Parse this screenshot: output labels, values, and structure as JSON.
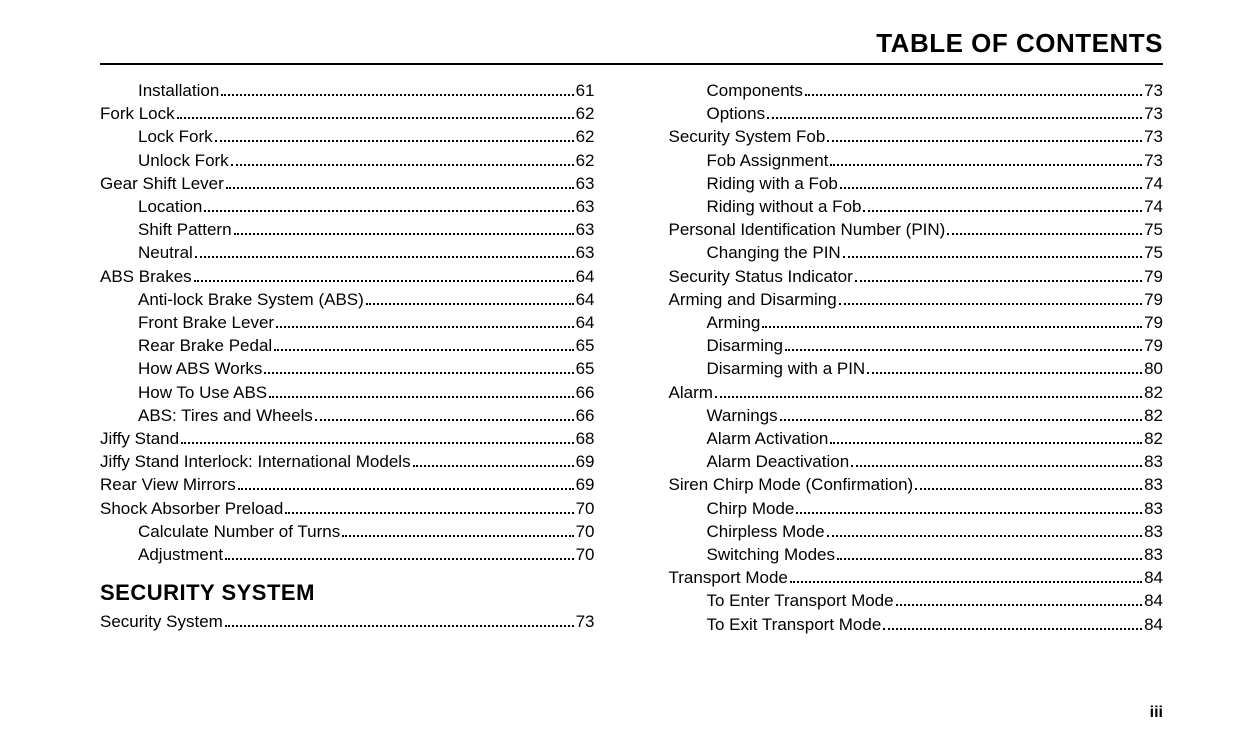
{
  "header": {
    "title": "TABLE OF CONTENTS"
  },
  "pageNumber": "iii",
  "columns": [
    {
      "items": [
        {
          "type": "entry",
          "level": 1,
          "title": "Installation",
          "page": "61"
        },
        {
          "type": "entry",
          "level": 0,
          "title": "Fork Lock",
          "page": "62"
        },
        {
          "type": "entry",
          "level": 1,
          "title": "Lock Fork",
          "page": "62"
        },
        {
          "type": "entry",
          "level": 1,
          "title": "Unlock Fork",
          "page": "62"
        },
        {
          "type": "entry",
          "level": 0,
          "title": "Gear Shift Lever",
          "page": "63"
        },
        {
          "type": "entry",
          "level": 1,
          "title": "Location",
          "page": "63"
        },
        {
          "type": "entry",
          "level": 1,
          "title": "Shift Pattern",
          "page": "63"
        },
        {
          "type": "entry",
          "level": 1,
          "title": "Neutral",
          "page": "63"
        },
        {
          "type": "entry",
          "level": 0,
          "title": "ABS Brakes",
          "page": "64"
        },
        {
          "type": "entry",
          "level": 1,
          "title": "Anti-lock Brake System (ABS)",
          "page": "64"
        },
        {
          "type": "entry",
          "level": 1,
          "title": "Front Brake Lever",
          "page": "64"
        },
        {
          "type": "entry",
          "level": 1,
          "title": "Rear Brake Pedal",
          "page": "65"
        },
        {
          "type": "entry",
          "level": 1,
          "title": "How ABS Works",
          "page": "65"
        },
        {
          "type": "entry",
          "level": 1,
          "title": "How To Use ABS",
          "page": "66"
        },
        {
          "type": "entry",
          "level": 1,
          "title": "ABS: Tires and Wheels",
          "page": "66"
        },
        {
          "type": "entry",
          "level": 0,
          "title": "Jiffy Stand",
          "page": "68"
        },
        {
          "type": "entry",
          "level": 0,
          "title": "Jiffy Stand Interlock: International Models",
          "page": "69"
        },
        {
          "type": "entry",
          "level": 0,
          "title": "Rear View Mirrors",
          "page": "69"
        },
        {
          "type": "entry",
          "level": 0,
          "title": "Shock Absorber Preload",
          "page": "70"
        },
        {
          "type": "entry",
          "level": 1,
          "title": "Calculate Number of Turns",
          "page": "70"
        },
        {
          "type": "entry",
          "level": 1,
          "title": "Adjustment",
          "page": "70"
        },
        {
          "type": "heading",
          "text": "SECURITY SYSTEM"
        },
        {
          "type": "entry",
          "level": 0,
          "title": "Security System",
          "page": "73"
        }
      ]
    },
    {
      "items": [
        {
          "type": "entry",
          "level": 1,
          "title": "Components",
          "page": "73"
        },
        {
          "type": "entry",
          "level": 1,
          "title": "Options",
          "page": "73"
        },
        {
          "type": "entry",
          "level": 0,
          "title": "Security System Fob",
          "page": "73"
        },
        {
          "type": "entry",
          "level": 1,
          "title": "Fob Assignment",
          "page": "73"
        },
        {
          "type": "entry",
          "level": 1,
          "title": "Riding with a Fob",
          "page": "74"
        },
        {
          "type": "entry",
          "level": 1,
          "title": "Riding without a Fob",
          "page": "74"
        },
        {
          "type": "entry",
          "level": 0,
          "title": "Personal Identification Number (PIN)",
          "page": "75"
        },
        {
          "type": "entry",
          "level": 1,
          "title": "Changing the PIN",
          "page": "75"
        },
        {
          "type": "entry",
          "level": 0,
          "title": "Security Status Indicator",
          "page": "79"
        },
        {
          "type": "entry",
          "level": 0,
          "title": "Arming and Disarming",
          "page": "79"
        },
        {
          "type": "entry",
          "level": 1,
          "title": "Arming",
          "page": "79"
        },
        {
          "type": "entry",
          "level": 1,
          "title": "Disarming",
          "page": "79"
        },
        {
          "type": "entry",
          "level": 1,
          "title": "Disarming with a PIN",
          "page": "80"
        },
        {
          "type": "entry",
          "level": 0,
          "title": "Alarm",
          "page": "82"
        },
        {
          "type": "entry",
          "level": 1,
          "title": "Warnings",
          "page": "82"
        },
        {
          "type": "entry",
          "level": 1,
          "title": "Alarm Activation",
          "page": "82"
        },
        {
          "type": "entry",
          "level": 1,
          "title": "Alarm Deactivation",
          "page": "83"
        },
        {
          "type": "entry",
          "level": 0,
          "title": "Siren Chirp Mode (Confirmation)",
          "page": "83"
        },
        {
          "type": "entry",
          "level": 1,
          "title": "Chirp Mode",
          "page": "83"
        },
        {
          "type": "entry",
          "level": 1,
          "title": "Chirpless Mode",
          "page": "83"
        },
        {
          "type": "entry",
          "level": 1,
          "title": "Switching Modes",
          "page": "83"
        },
        {
          "type": "entry",
          "level": 0,
          "title": "Transport Mode",
          "page": "84"
        },
        {
          "type": "entry",
          "level": 1,
          "title": "To Enter Transport Mode",
          "page": "84"
        },
        {
          "type": "entry",
          "level": 1,
          "title": "To Exit Transport Mode",
          "page": "84"
        }
      ]
    }
  ]
}
